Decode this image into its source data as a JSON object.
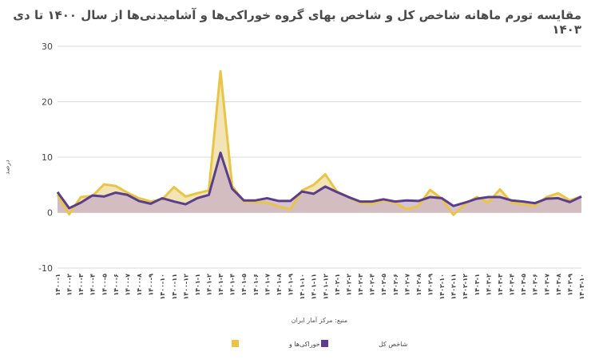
{
  "chart_data": {
    "type": "area",
    "title": "مقایسه تورم ماهانه شاخص کل و شاخص بهای گروه خوراکی‌ها و آشامیدنی‌ها از  سال ۱۴۰۰ تا دی ۱۴۰۳",
    "ylabel": "درصد",
    "xlabel": "منبع: مرکز آمار ایران",
    "ylim": [
      -10,
      30
    ],
    "yticks": [
      -10,
      0,
      10,
      20,
      30
    ],
    "grid": true,
    "legend_position": "bottom",
    "categories": [
      "۱۴۰۰-۱",
      "۱۴۰۰-۲",
      "۱۴۰۰-۳",
      "۱۴۰۰-۴",
      "۱۴۰۰-۵",
      "۱۴۰۰-۶",
      "۱۴۰۰-۷",
      "۱۴۰۰-۸",
      "۱۴۰۰-۹",
      "۱۴۰۰-۱۰",
      "۱۴۰۰-۱۱",
      "۱۴۰۰-۱۲",
      "۱۴۰۱-۱",
      "۱۴۰۱-۲",
      "۱۴۰۱-۳",
      "۱۴۰۱-۴",
      "۱۴۰۱-۵",
      "۱۴۰۱-۶",
      "۱۴۰۱-۷",
      "۱۴۰۱-۸",
      "۱۴۰۱-۹",
      "۱۴۰۱-۱۰",
      "۱۴۰۱-۱۱",
      "۱۴۰۱-۱۲",
      "۱۴۰۲-۱",
      "۱۴۰۲-۲",
      "۱۴۰۲-۳",
      "۱۴۰۲-۴",
      "۱۴۰۲-۵",
      "۱۴۰۲-۶",
      "۱۴۰۲-۷",
      "۱۴۰۲-۸",
      "۱۴۰۲-۹",
      "۱۴۰۲-۱۰",
      "۱۴۰۲-۱۱",
      "۱۴۰۲-۱۲",
      "۱۴۰۳-۱",
      "۱۴۰۳-۲",
      "۱۴۰۳-۳",
      "۱۴۰۳-۴",
      "۱۴۰۳-۵",
      "۱۴۰۳-۶",
      "۱۴۰۳-۷",
      "۱۴۰۳-۸",
      "۱۴۰۳-۹",
      "۱۴۰۳-۱۰"
    ],
    "series": [
      {
        "name": "خوراکی‌ها و",
        "color": "#E8C547",
        "fill": "#F0DFA8",
        "values": [
          3.2,
          -0.3,
          2.8,
          3.0,
          5.1,
          4.8,
          3.6,
          2.6,
          2.0,
          2.4,
          4.6,
          2.9,
          3.5,
          4.0,
          25.5,
          4.8,
          2.0,
          1.9,
          1.8,
          1.1,
          0.6,
          4.0,
          5.0,
          6.9,
          3.8,
          2.8,
          1.8,
          1.6,
          2.2,
          1.8,
          0.6,
          1.2,
          4.1,
          2.5,
          -0.4,
          1.5,
          2.8,
          1.8,
          4.2,
          1.8,
          1.5,
          1.2,
          2.8,
          3.5,
          2.2,
          2.9
        ]
      },
      {
        "name": "شاخص کل",
        "color": "#5A3E8C",
        "fill": "#C8B0C4",
        "values": [
          3.7,
          0.8,
          1.8,
          3.1,
          2.9,
          3.6,
          3.2,
          2.1,
          1.6,
          2.6,
          2.0,
          1.5,
          2.6,
          3.2,
          10.8,
          4.3,
          2.2,
          2.2,
          2.6,
          2.1,
          2.1,
          3.8,
          3.4,
          4.7,
          3.7,
          2.8,
          2.0,
          2.0,
          2.4,
          2.0,
          2.2,
          2.1,
          2.8,
          2.6,
          1.2,
          1.8,
          2.5,
          2.8,
          2.8,
          2.2,
          2.0,
          1.7,
          2.5,
          2.6,
          1.9,
          2.9
        ]
      }
    ]
  }
}
